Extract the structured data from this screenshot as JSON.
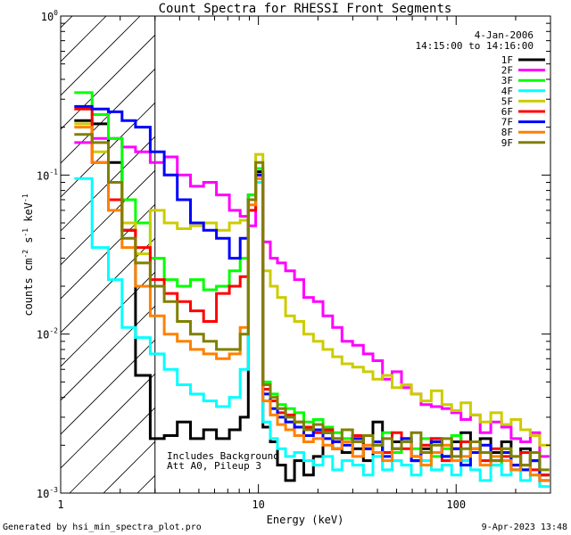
{
  "chart_data": {
    "type": "line",
    "title": "Count Spectra for RHESSI Front Segments",
    "xlabel": "Energy (keV)",
    "ylabel_parts": {
      "base": "counts cm",
      "exp1": "-2",
      "mid1": " s",
      "exp2": "-1",
      "mid2": " keV",
      "exp3": "-1"
    },
    "xscale": "log",
    "yscale": "log",
    "xlim": [
      1,
      300
    ],
    "ylim": [
      0.001,
      1
    ],
    "x_ticks": [
      {
        "v": 1,
        "label": "1"
      },
      {
        "v": 10,
        "label": "10"
      },
      {
        "v": 100,
        "label": "100"
      }
    ],
    "y_ticks": [
      {
        "v": 1,
        "base": "10",
        "exp": "0"
      },
      {
        "v": 0.1,
        "base": "10",
        "exp": "-1"
      },
      {
        "v": 0.01,
        "base": "10",
        "exp": "-2"
      },
      {
        "v": 0.001,
        "base": "10",
        "exp": "-3"
      }
    ],
    "attenuator_shade_xmax": 3,
    "legend": {
      "date": "4-Jan-2006",
      "time_range": "14:15:00 to 14:16:00",
      "position": "top-right"
    },
    "annotation": [
      "Includes Background",
      "Att A0, Pileup 3"
    ],
    "series": [
      {
        "name": "1F",
        "color": "#000000",
        "x": [
          1.3,
          1.6,
          1.9,
          2.2,
          2.6,
          3.1,
          3.6,
          4.2,
          4.9,
          5.7,
          6.6,
          7.7,
          8.5,
          9.3,
          10.1,
          11,
          12,
          13,
          14.5,
          16,
          18,
          20,
          22.5,
          25,
          28,
          32,
          36,
          40,
          45,
          50,
          56,
          63,
          70,
          80,
          90,
          100,
          112,
          125,
          140,
          160,
          180,
          200,
          225,
          250,
          280
        ],
        "y": [
          0.22,
          0.21,
          0.12,
          0.045,
          0.0055,
          0.0022,
          0.0023,
          0.0028,
          0.0022,
          0.0025,
          0.0022,
          0.0025,
          0.003,
          0.075,
          0.105,
          0.0026,
          0.0021,
          0.0015,
          0.0012,
          0.0016,
          0.0013,
          0.0017,
          0.0024,
          0.0019,
          0.0018,
          0.0019,
          0.0016,
          0.0028,
          0.0018,
          0.0021,
          0.0022,
          0.0016,
          0.0019,
          0.0022,
          0.0017,
          0.0021,
          0.0024,
          0.0019,
          0.0022,
          0.0018,
          0.0021,
          0.0014,
          0.0019,
          0.0016,
          0.0013
        ]
      },
      {
        "name": "2F",
        "color": "#ff00ff",
        "x": [
          1.3,
          1.6,
          1.9,
          2.2,
          2.6,
          3.1,
          3.6,
          4.2,
          4.9,
          5.7,
          6.6,
          7.7,
          8.5,
          9.3,
          10.1,
          11,
          12,
          13,
          14.5,
          16,
          18,
          20,
          22.5,
          25,
          28,
          32,
          36,
          40,
          45,
          50,
          56,
          63,
          70,
          80,
          90,
          100,
          112,
          125,
          140,
          160,
          180,
          200,
          225,
          250,
          280
        ],
        "y": [
          0.16,
          0.17,
          0.17,
          0.15,
          0.14,
          0.12,
          0.13,
          0.1,
          0.085,
          0.09,
          0.075,
          0.06,
          0.055,
          0.048,
          0.095,
          0.038,
          0.03,
          0.028,
          0.025,
          0.022,
          0.017,
          0.016,
          0.013,
          0.011,
          0.009,
          0.0085,
          0.0075,
          0.0068,
          0.0052,
          0.0058,
          0.0046,
          0.0042,
          0.0036,
          0.0035,
          0.0034,
          0.0032,
          0.0029,
          0.0031,
          0.0024,
          0.0028,
          0.0026,
          0.0022,
          0.0021,
          0.0024,
          0.0017
        ]
      },
      {
        "name": "3F",
        "color": "#00ff00",
        "x": [
          1.3,
          1.6,
          1.9,
          2.2,
          2.6,
          3.1,
          3.6,
          4.2,
          4.9,
          5.7,
          6.6,
          7.7,
          8.5,
          9.3,
          10.1,
          11,
          12,
          13,
          14.5,
          16,
          18,
          20,
          22.5,
          25,
          28,
          32,
          36,
          40,
          45,
          50,
          56,
          63,
          70,
          80,
          90,
          100,
          112,
          125,
          140,
          160,
          180,
          200,
          225,
          250,
          280
        ],
        "y": [
          0.33,
          0.24,
          0.17,
          0.07,
          0.05,
          0.03,
          0.022,
          0.02,
          0.022,
          0.019,
          0.02,
          0.025,
          0.03,
          0.075,
          0.11,
          0.005,
          0.0042,
          0.0036,
          0.0034,
          0.0032,
          0.0028,
          0.0029,
          0.0026,
          0.0024,
          0.0022,
          0.0023,
          0.0019,
          0.002,
          0.0024,
          0.0018,
          0.0021,
          0.0019,
          0.0022,
          0.0017,
          0.0019,
          0.0023,
          0.0016,
          0.0021,
          0.0018,
          0.0015,
          0.0019,
          0.0017,
          0.0014,
          0.0018,
          0.0013
        ]
      },
      {
        "name": "4F",
        "color": "#00ffff",
        "x": [
          1.3,
          1.6,
          1.9,
          2.2,
          2.6,
          3.1,
          3.6,
          4.2,
          4.9,
          5.7,
          6.6,
          7.7,
          8.5,
          9.3,
          10.1,
          11,
          12,
          13,
          14.5,
          16,
          18,
          20,
          22.5,
          25,
          28,
          32,
          36,
          40,
          45,
          50,
          56,
          63,
          70,
          80,
          90,
          100,
          112,
          125,
          140,
          160,
          180,
          200,
          225,
          250,
          280
        ],
        "y": [
          0.095,
          0.035,
          0.022,
          0.011,
          0.0095,
          0.0075,
          0.006,
          0.0048,
          0.0042,
          0.0038,
          0.0035,
          0.004,
          0.006,
          0.06,
          0.09,
          0.0028,
          0.0022,
          0.0019,
          0.0017,
          0.0018,
          0.0016,
          0.0015,
          0.0017,
          0.0014,
          0.0016,
          0.0015,
          0.0013,
          0.0017,
          0.0014,
          0.0016,
          0.0015,
          0.0013,
          0.0016,
          0.0014,
          0.0015,
          0.0013,
          0.0016,
          0.0014,
          0.0012,
          0.0015,
          0.0013,
          0.0014,
          0.0012,
          0.0013,
          0.0011
        ]
      },
      {
        "name": "5F",
        "color": "#cccc00",
        "x": [
          1.3,
          1.6,
          1.9,
          2.2,
          2.6,
          3.1,
          3.6,
          4.2,
          4.9,
          5.7,
          6.6,
          7.7,
          8.5,
          9.3,
          10.1,
          11,
          12,
          13,
          14.5,
          16,
          18,
          20,
          22.5,
          25,
          28,
          32,
          36,
          40,
          45,
          50,
          56,
          63,
          70,
          80,
          90,
          100,
          112,
          125,
          140,
          160,
          180,
          200,
          225,
          250,
          280
        ],
        "y": [
          0.21,
          0.14,
          0.09,
          0.05,
          0.032,
          0.06,
          0.05,
          0.046,
          0.048,
          0.05,
          0.045,
          0.05,
          0.052,
          0.07,
          0.135,
          0.025,
          0.02,
          0.017,
          0.013,
          0.012,
          0.01,
          0.009,
          0.008,
          0.0072,
          0.0065,
          0.0062,
          0.0058,
          0.0052,
          0.0055,
          0.0046,
          0.0048,
          0.0042,
          0.0038,
          0.0044,
          0.0036,
          0.0033,
          0.0037,
          0.0031,
          0.0028,
          0.0032,
          0.0027,
          0.0029,
          0.0025,
          0.0023,
          0.002
        ]
      },
      {
        "name": "6F",
        "color": "#ff0000",
        "x": [
          1.3,
          1.6,
          1.9,
          2.2,
          2.6,
          3.1,
          3.6,
          4.2,
          4.9,
          5.7,
          6.6,
          7.7,
          8.5,
          9.3,
          10.1,
          11,
          12,
          13,
          14.5,
          16,
          18,
          20,
          22.5,
          25,
          28,
          32,
          36,
          40,
          45,
          50,
          56,
          63,
          70,
          80,
          90,
          100,
          112,
          125,
          140,
          160,
          180,
          200,
          225,
          250,
          280
        ],
        "y": [
          0.26,
          0.12,
          0.07,
          0.045,
          0.035,
          0.022,
          0.018,
          0.016,
          0.014,
          0.012,
          0.018,
          0.02,
          0.023,
          0.06,
          0.1,
          0.0045,
          0.0038,
          0.0032,
          0.0031,
          0.0028,
          0.0026,
          0.0024,
          0.0025,
          0.0022,
          0.0021,
          0.0023,
          0.0019,
          0.0021,
          0.0018,
          0.0024,
          0.0019,
          0.0017,
          0.002,
          0.0022,
          0.0016,
          0.0019,
          0.0021,
          0.0018,
          0.0016,
          0.0019,
          0.0017,
          0.0015,
          0.0018,
          0.0014,
          0.0013
        ]
      },
      {
        "name": "7F",
        "color": "#0000ff",
        "x": [
          1.3,
          1.6,
          1.9,
          2.2,
          2.6,
          3.1,
          3.6,
          4.2,
          4.9,
          5.7,
          6.6,
          7.7,
          8.5,
          9.3,
          10.1,
          11,
          12,
          13,
          14.5,
          16,
          18,
          20,
          22.5,
          25,
          28,
          32,
          36,
          40,
          45,
          50,
          56,
          63,
          70,
          80,
          90,
          100,
          112,
          125,
          140,
          160,
          180,
          200,
          225,
          250,
          280
        ],
        "y": [
          0.27,
          0.26,
          0.25,
          0.22,
          0.2,
          0.14,
          0.1,
          0.07,
          0.05,
          0.045,
          0.04,
          0.03,
          0.04,
          0.07,
          0.1,
          0.0042,
          0.0034,
          0.003,
          0.0028,
          0.0026,
          0.0023,
          0.0025,
          0.0022,
          0.0021,
          0.002,
          0.0022,
          0.0019,
          0.0021,
          0.0017,
          0.0019,
          0.0022,
          0.0016,
          0.0018,
          0.0021,
          0.0017,
          0.0019,
          0.0015,
          0.0018,
          0.002,
          0.0016,
          0.0018,
          0.0015,
          0.0014,
          0.0016,
          0.0012
        ]
      },
      {
        "name": "8F",
        "color": "#ff8000",
        "x": [
          1.3,
          1.6,
          1.9,
          2.2,
          2.6,
          3.1,
          3.6,
          4.2,
          4.9,
          5.7,
          6.6,
          7.7,
          8.5,
          9.3,
          10.1,
          11,
          12,
          13,
          14.5,
          16,
          18,
          20,
          22.5,
          25,
          28,
          32,
          36,
          40,
          45,
          50,
          56,
          63,
          70,
          80,
          90,
          100,
          112,
          125,
          140,
          160,
          180,
          200,
          225,
          250,
          280
        ],
        "y": [
          0.2,
          0.12,
          0.06,
          0.035,
          0.02,
          0.013,
          0.01,
          0.009,
          0.008,
          0.0075,
          0.007,
          0.0075,
          0.011,
          0.065,
          0.095,
          0.0038,
          0.0031,
          0.0027,
          0.0025,
          0.0023,
          0.0021,
          0.0022,
          0.002,
          0.0019,
          0.0021,
          0.0017,
          0.002,
          0.0018,
          0.0016,
          0.0019,
          0.0021,
          0.0017,
          0.0015,
          0.0018,
          0.002,
          0.0016,
          0.0017,
          0.0019,
          0.0015,
          0.0017,
          0.0016,
          0.0014,
          0.0015,
          0.0013,
          0.0012
        ]
      },
      {
        "name": "9F",
        "color": "#808000",
        "x": [
          1.3,
          1.6,
          1.9,
          2.2,
          2.6,
          3.1,
          3.6,
          4.2,
          4.9,
          5.7,
          6.6,
          7.7,
          8.5,
          9.3,
          10.1,
          11,
          12,
          13,
          14.5,
          16,
          18,
          20,
          22.5,
          25,
          28,
          32,
          36,
          40,
          45,
          50,
          56,
          63,
          70,
          80,
          90,
          100,
          112,
          125,
          140,
          160,
          180,
          200,
          225,
          250,
          280
        ],
        "y": [
          0.18,
          0.16,
          0.09,
          0.04,
          0.028,
          0.02,
          0.016,
          0.012,
          0.01,
          0.009,
          0.008,
          0.008,
          0.01,
          0.07,
          0.12,
          0.0048,
          0.004,
          0.0034,
          0.003,
          0.0028,
          0.0025,
          0.0027,
          0.0024,
          0.0022,
          0.0025,
          0.0021,
          0.0023,
          0.002,
          0.0022,
          0.0019,
          0.0021,
          0.0024,
          0.0018,
          0.002,
          0.0022,
          0.0017,
          0.0019,
          0.0021,
          0.0018,
          0.0016,
          0.0019,
          0.0017,
          0.0015,
          0.0018,
          0.0014
        ]
      }
    ]
  },
  "footer": {
    "left": "Generated by hsi_min_spectra_plot.pro",
    "right": "9-Apr-2023 13:48"
  }
}
